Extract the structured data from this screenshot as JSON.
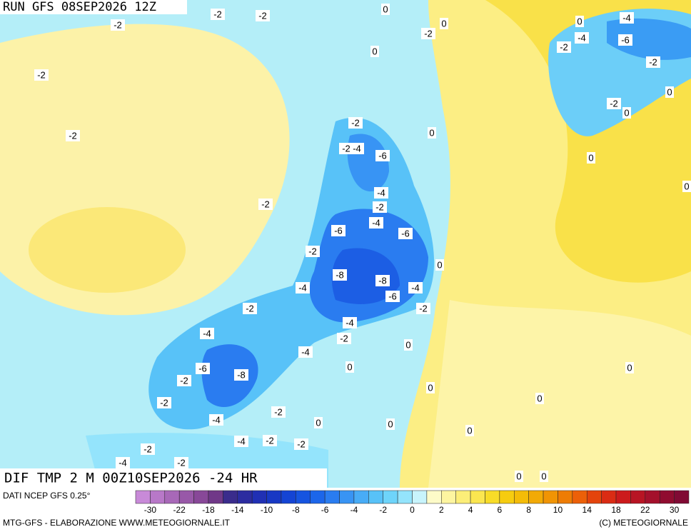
{
  "map": {
    "header": "RUN GFS 08SEP2026 12Z",
    "title": "DIF TMP 2 M 00Z10SEP2026 -24 HR",
    "contour_labels": [
      "-2",
      "-2",
      "0",
      "-2",
      "0",
      "-4",
      "-2",
      "0",
      "-4",
      "-6",
      "-2",
      "0",
      "-2",
      "-2",
      "0",
      "-2",
      "0",
      "-2",
      "-2",
      "0",
      "-2",
      "-4",
      "-6",
      "0",
      "-4",
      "0",
      "-2",
      "-2",
      "-4",
      "-6",
      "-6",
      "-2",
      "0",
      "-8",
      "-8",
      "-4",
      "-4",
      "-6",
      "-2",
      "-2",
      "-4",
      "-4",
      "-2",
      "0",
      "-4",
      "0",
      "-6",
      "-8",
      "0",
      "-2",
      "0",
      "-2",
      "0",
      "-2",
      "-4",
      "0",
      "0",
      "0",
      "-4",
      "-2",
      "-2",
      "-2",
      "-4",
      "-2",
      "0",
      "0"
    ],
    "legend": {
      "source": "DATI NCEP GFS 0.25°",
      "ticks": [
        -30,
        -22,
        -18,
        -14,
        -10,
        -8,
        -6,
        -4,
        -2,
        0,
        2,
        4,
        6,
        8,
        10,
        14,
        18,
        22,
        30
      ],
      "colors": [
        "#c88ad8",
        "#b878c8",
        "#a868b8",
        "#9858a8",
        "#884898",
        "#703888",
        "#3a2c8c",
        "#2c2ca0",
        "#2030b4",
        "#1838c4",
        "#1444d4",
        "#1654e0",
        "#1c66ea",
        "#2a7cf0",
        "#3894f4",
        "#48acf6",
        "#58c2f8",
        "#6ed4fa",
        "#94e4fc",
        "#c8f4fc",
        "#fdfbc8",
        "#fdf5a0",
        "#fcee78",
        "#fbe650",
        "#f8dc28",
        "#f6cc10",
        "#f4bc08",
        "#f2aa06",
        "#f09404",
        "#ee7c04",
        "#ec6008",
        "#e4440c",
        "#da2c14",
        "#cc1a1c",
        "#b81424",
        "#a4102c",
        "#900c30",
        "#800a34"
      ]
    },
    "footer": {
      "left": "MTG-GFS - ELABORAZIONE WWW.METEOGIORNALE.IT",
      "right": "(C) METEOGIORNALE"
    }
  }
}
